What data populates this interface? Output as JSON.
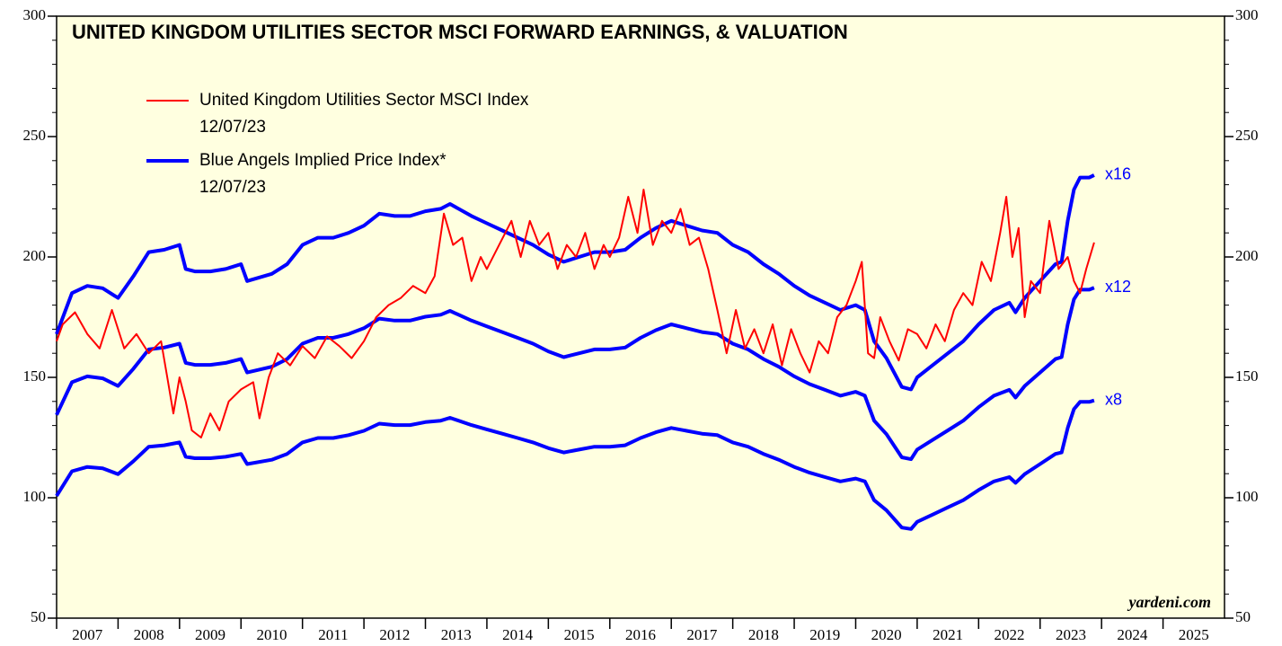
{
  "chart_data": {
    "type": "line",
    "title": "UNITED KINGDOM UTILITIES SECTOR MSCI FORWARD EARNINGS, & VALUATION",
    "watermark": "yardeni.com",
    "xlim": [
      2007,
      2026
    ],
    "xticks": [
      2007,
      2008,
      2009,
      2010,
      2011,
      2012,
      2013,
      2014,
      2015,
      2016,
      2017,
      2018,
      2019,
      2020,
      2021,
      2022,
      2023,
      2024,
      2025
    ],
    "ylim": [
      50,
      300
    ],
    "yticks": [
      50,
      100,
      150,
      200,
      250,
      300
    ],
    "y_minor_ticks": [
      60,
      70,
      80,
      90,
      110,
      120,
      130,
      140,
      160,
      170,
      180,
      190,
      210,
      220,
      230,
      240,
      260,
      270,
      280,
      290
    ],
    "red_legend": {
      "text": "United Kingdom Utilities Sector MSCI Index",
      "date": "12/07/23"
    },
    "blue_legend": {
      "text": "Blue Angels Implied Price Index*",
      "date": "12/07/23"
    },
    "series": [
      {
        "name": "United Kingdom Utilities Sector MSCI Index",
        "color": "#ff0000",
        "x": [
          2007.0,
          2007.1,
          2007.3,
          2007.5,
          2007.7,
          2007.9,
          2008.1,
          2008.3,
          2008.5,
          2008.7,
          2008.8,
          2008.9,
          2009.0,
          2009.1,
          2009.2,
          2009.35,
          2009.5,
          2009.65,
          2009.8,
          2010.0,
          2010.2,
          2010.3,
          2010.45,
          2010.6,
          2010.8,
          2011.0,
          2011.2,
          2011.4,
          2011.6,
          2011.8,
          2012.0,
          2012.2,
          2012.4,
          2012.6,
          2012.8,
          2013.0,
          2013.15,
          2013.3,
          2013.45,
          2013.6,
          2013.75,
          2013.9,
          2014.0,
          2014.2,
          2014.4,
          2014.55,
          2014.7,
          2014.85,
          2015.0,
          2015.15,
          2015.3,
          2015.45,
          2015.6,
          2015.75,
          2015.9,
          2016.0,
          2016.15,
          2016.3,
          2016.45,
          2016.55,
          2016.7,
          2016.85,
          2017.0,
          2017.15,
          2017.3,
          2017.45,
          2017.6,
          2017.75,
          2017.9,
          2018.05,
          2018.2,
          2018.35,
          2018.5,
          2018.65,
          2018.8,
          2018.95,
          2019.1,
          2019.25,
          2019.4,
          2019.55,
          2019.7,
          2019.85,
          2020.0,
          2020.1,
          2020.2,
          2020.3,
          2020.4,
          2020.55,
          2020.7,
          2020.85,
          2021.0,
          2021.15,
          2021.3,
          2021.45,
          2021.6,
          2021.75,
          2021.9,
          2022.05,
          2022.2,
          2022.35,
          2022.45,
          2022.55,
          2022.65,
          2022.75,
          2022.85,
          2023.0,
          2023.15,
          2023.3,
          2023.45,
          2023.55,
          2023.65,
          2023.75,
          2023.88
        ],
        "values": [
          165,
          172,
          177,
          168,
          162,
          178,
          162,
          168,
          160,
          165,
          150,
          135,
          150,
          140,
          128,
          125,
          135,
          128,
          140,
          145,
          148,
          133,
          150,
          160,
          155,
          163,
          158,
          167,
          163,
          158,
          165,
          175,
          180,
          183,
          188,
          185,
          192,
          218,
          205,
          208,
          190,
          200,
          195,
          205,
          215,
          200,
          215,
          205,
          210,
          195,
          205,
          200,
          210,
          195,
          205,
          200,
          208,
          225,
          210,
          228,
          205,
          215,
          210,
          220,
          205,
          208,
          195,
          178,
          160,
          178,
          162,
          170,
          160,
          172,
          155,
          170,
          160,
          152,
          165,
          160,
          175,
          180,
          190,
          198,
          160,
          158,
          175,
          165,
          157,
          170,
          168,
          162,
          172,
          165,
          178,
          185,
          180,
          198,
          190,
          210,
          225,
          200,
          212,
          175,
          190,
          185,
          215,
          195,
          200,
          190,
          185,
          195,
          206
        ]
      },
      {
        "name": "x16",
        "color": "#0000ff",
        "x": [
          2007.0,
          2007.25,
          2007.5,
          2007.75,
          2008.0,
          2008.25,
          2008.5,
          2008.75,
          2009.0,
          2009.1,
          2009.25,
          2009.5,
          2009.75,
          2010.0,
          2010.1,
          2010.5,
          2010.75,
          2011.0,
          2011.25,
          2011.5,
          2011.75,
          2012.0,
          2012.25,
          2012.5,
          2012.75,
          2013.0,
          2013.25,
          2013.4,
          2013.75,
          2014.0,
          2014.25,
          2014.5,
          2014.75,
          2015.0,
          2015.25,
          2015.5,
          2015.75,
          2016.0,
          2016.25,
          2016.5,
          2016.75,
          2017.0,
          2017.25,
          2017.5,
          2017.75,
          2018.0,
          2018.25,
          2018.5,
          2018.75,
          2019.0,
          2019.25,
          2019.5,
          2019.75,
          2020.0,
          2020.15,
          2020.3,
          2020.5,
          2020.75,
          2020.9,
          2021.0,
          2021.25,
          2021.5,
          2021.75,
          2022.0,
          2022.25,
          2022.5,
          2022.6,
          2022.75,
          2023.0,
          2023.25,
          2023.35,
          2023.45,
          2023.55,
          2023.65,
          2023.8,
          2023.88
        ],
        "values": [
          168,
          185,
          188,
          187,
          183,
          192,
          202,
          203,
          205,
          195,
          194,
          194,
          195,
          197,
          190,
          193,
          197,
          205,
          208,
          208,
          210,
          213,
          218,
          217,
          217,
          219,
          220,
          222,
          217,
          214,
          211,
          208,
          205,
          201,
          198,
          200,
          202,
          202,
          203,
          208,
          212,
          215,
          213,
          211,
          210,
          205,
          202,
          197,
          193,
          188,
          184,
          181,
          178,
          180,
          178,
          165,
          158,
          146,
          145,
          150,
          155,
          160,
          165,
          172,
          178,
          181,
          177,
          183,
          190,
          197,
          198,
          215,
          228,
          233,
          233,
          234
        ]
      },
      {
        "name": "x12",
        "color": "#0000ff",
        "x": [
          2007.0,
          2007.25,
          2007.5,
          2007.75,
          2008.0,
          2008.25,
          2008.5,
          2008.75,
          2009.0,
          2009.1,
          2009.25,
          2009.5,
          2009.75,
          2010.0,
          2010.1,
          2010.5,
          2010.75,
          2011.0,
          2011.25,
          2011.5,
          2011.75,
          2012.0,
          2012.25,
          2012.5,
          2012.75,
          2013.0,
          2013.25,
          2013.4,
          2013.75,
          2014.0,
          2014.25,
          2014.5,
          2014.75,
          2015.0,
          2015.25,
          2015.5,
          2015.75,
          2016.0,
          2016.25,
          2016.5,
          2016.75,
          2017.0,
          2017.25,
          2017.5,
          2017.75,
          2018.0,
          2018.25,
          2018.5,
          2018.75,
          2019.0,
          2019.25,
          2019.5,
          2019.75,
          2020.0,
          2020.15,
          2020.3,
          2020.5,
          2020.75,
          2020.9,
          2021.0,
          2021.25,
          2021.5,
          2021.75,
          2022.0,
          2022.25,
          2022.5,
          2022.6,
          2022.75,
          2023.0,
          2023.25,
          2023.35,
          2023.45,
          2023.55,
          2023.65,
          2023.8,
          2023.88
        ],
        "values": [
          134.4,
          148,
          150.4,
          149.6,
          146.4,
          153.6,
          161.6,
          162.4,
          164,
          156,
          155.2,
          155.2,
          156,
          157.6,
          152,
          154.4,
          157.6,
          164,
          166.4,
          166.4,
          168,
          170.4,
          174.4,
          173.6,
          173.6,
          175.2,
          176,
          177.6,
          173.6,
          171.2,
          168.8,
          166.4,
          164,
          160.8,
          158.4,
          160,
          161.6,
          161.6,
          162.4,
          166.4,
          169.6,
          172,
          170.4,
          168.8,
          168,
          164,
          161.6,
          157.6,
          154.4,
          150.4,
          147.2,
          144.8,
          142.4,
          144,
          142.4,
          132,
          126.4,
          116.8,
          116,
          120,
          124,
          128,
          132,
          137.6,
          142.4,
          144.8,
          141.6,
          146.4,
          152,
          157.6,
          158.4,
          172,
          182.4,
          186.4,
          186.4,
          187.2
        ]
      },
      {
        "name": "x8",
        "color": "#0000ff",
        "x": [
          2007.0,
          2007.25,
          2007.5,
          2007.75,
          2008.0,
          2008.25,
          2008.5,
          2008.75,
          2009.0,
          2009.1,
          2009.25,
          2009.5,
          2009.75,
          2010.0,
          2010.1,
          2010.5,
          2010.75,
          2011.0,
          2011.25,
          2011.5,
          2011.75,
          2012.0,
          2012.25,
          2012.5,
          2012.75,
          2013.0,
          2013.25,
          2013.4,
          2013.75,
          2014.0,
          2014.25,
          2014.5,
          2014.75,
          2015.0,
          2015.25,
          2015.5,
          2015.75,
          2016.0,
          2016.25,
          2016.5,
          2016.75,
          2017.0,
          2017.25,
          2017.5,
          2017.75,
          2018.0,
          2018.25,
          2018.5,
          2018.75,
          2019.0,
          2019.25,
          2019.5,
          2019.75,
          2020.0,
          2020.15,
          2020.3,
          2020.5,
          2020.75,
          2020.9,
          2021.0,
          2021.25,
          2021.5,
          2021.75,
          2022.0,
          2022.25,
          2022.5,
          2022.6,
          2022.75,
          2023.0,
          2023.25,
          2023.35,
          2023.45,
          2023.55,
          2023.65,
          2023.8,
          2023.88
        ],
        "values": [
          100.8,
          111,
          112.8,
          112.2,
          109.8,
          115.2,
          121.2,
          121.8,
          123,
          117,
          116.4,
          116.4,
          117,
          118.2,
          114,
          115.8,
          118.2,
          123,
          124.8,
          124.8,
          126,
          127.8,
          130.8,
          130.2,
          130.2,
          131.4,
          132,
          133.2,
          130.2,
          128.4,
          126.6,
          124.8,
          123,
          120.6,
          118.8,
          120,
          121.2,
          121.2,
          121.8,
          124.8,
          127.2,
          129,
          127.8,
          126.6,
          126,
          123,
          121.2,
          118.2,
          115.8,
          112.8,
          110.4,
          108.6,
          106.8,
          108,
          106.8,
          99,
          94.8,
          87.6,
          87,
          90,
          93,
          96,
          99,
          103.2,
          106.8,
          108.6,
          106.2,
          109.8,
          114,
          118.2,
          118.8,
          129,
          136.8,
          139.8,
          139.8,
          140.4
        ]
      }
    ]
  }
}
